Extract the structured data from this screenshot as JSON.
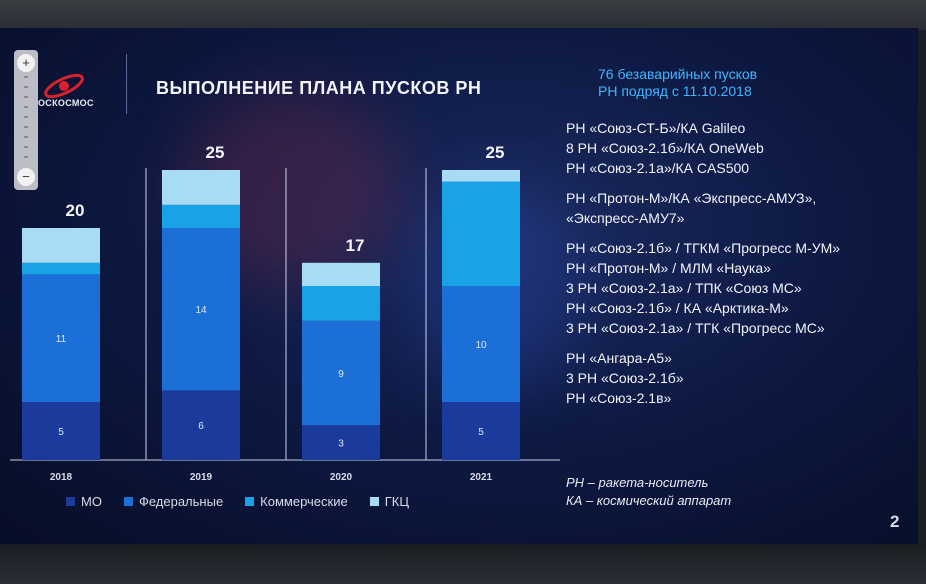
{
  "slide": {
    "logo_text": "ОСКОСМОС",
    "title": "ВЫПОЛНЕНИЕ ПЛАНА ПУСКОВ РН",
    "highlight_lines": [
      "76 безаварийных пусков",
      "РН подряд с 11.10.2018"
    ],
    "note_groups": [
      [
        "РН «Союз-СТ-Б»/КА Galileo",
        "8 РН «Союз-2.1б»/КА OneWeb",
        "РН «Союз-2.1а»/КА CAS500"
      ],
      [
        "РН «Протон-М»/КА «Экспресс-АМУЗ»,",
        "«Экспресс-АМУ7»"
      ],
      [
        "РН «Союз-2.1б» / ТГКМ «Прогресс М-УМ»",
        "РН «Протон-М» / МЛМ «Наука»",
        "3 РН «Союз-2.1а» / ТПК «Союз МС»",
        "РН «Союз-2.1б» / КА «Арктика-М»",
        "3 РН «Союз-2.1а» / ТГК «Прогресс МС»"
      ],
      [
        "РН «Ангара-А5»",
        "3 РН «Союз-2.1б»",
        "РН «Союз-2.1в»"
      ]
    ],
    "definitions": [
      "РН – ракета-носитель",
      "КА – космический аппарат"
    ],
    "page_number": "2"
  },
  "colors": {
    "МО": "#1a3a9c",
    "Федеральные": "#1c6fd6",
    "Коммерческие": "#1aa2e6",
    "ГКЦ": "#a8dcf4"
  },
  "chart_data": {
    "type": "bar",
    "stacked": true,
    "categories": [
      "2018",
      "2019",
      "2020",
      "2021"
    ],
    "totals": [
      20,
      25,
      17,
      25
    ],
    "series": [
      {
        "name": "МО",
        "values": [
          5,
          6,
          3,
          5
        ],
        "labels": [
          "5",
          "6",
          "3",
          "5"
        ]
      },
      {
        "name": "Федеральные",
        "values": [
          11,
          14,
          9,
          10
        ],
        "labels": [
          "11",
          "14",
          "9",
          "10"
        ]
      },
      {
        "name": "Коммерческие",
        "values": [
          1,
          2,
          3,
          9
        ],
        "labels": [
          "",
          "",
          "",
          ""
        ]
      },
      {
        "name": "ГКЦ",
        "values": [
          3,
          3,
          2,
          1
        ],
        "labels": [
          "",
          "",
          "",
          ""
        ]
      }
    ],
    "legend_position": "bottom",
    "grid": false
  }
}
